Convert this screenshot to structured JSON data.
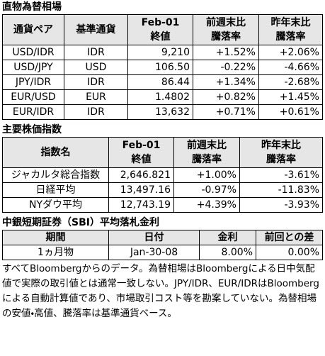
{
  "sections": [
    {
      "title": "直物為替相場",
      "header": [
        [
          "通貨ペア"
        ],
        [
          "基準通貨"
        ],
        [
          "Feb-01",
          "終値"
        ],
        [
          "前週末比",
          "騰落率"
        ],
        [
          "昨年末比",
          "騰落率"
        ]
      ],
      "rows": [
        [
          "USD/IDR",
          "IDR",
          "9,210",
          "+1.52%",
          "+2.06%"
        ],
        [
          "USD/JPY",
          "USD",
          "106.50",
          "-0.22%",
          "-4.66%"
        ],
        [
          "JPY/IDR",
          "IDR",
          "86.44",
          "+1.34%",
          "-2.68%"
        ],
        [
          "EUR/USD",
          "EUR",
          "1.4802",
          "+0.82%",
          "+1.45%"
        ],
        [
          "EUR/IDR",
          "IDR",
          "13,632",
          "+0.71%",
          "+0.61%"
        ]
      ]
    },
    {
      "title": "主要株価指数",
      "header": [
        [
          "指数名"
        ],
        [
          "Feb-01",
          "終値"
        ],
        [
          "前週末比",
          "騰落率"
        ],
        [
          "昨年末比",
          "騰落率"
        ]
      ],
      "rows": [
        [
          "ジャカルタ総合指数",
          "2,646.821",
          "+1.00%",
          "-3.61%"
        ],
        [
          "日経平均",
          "13,497.16",
          "-0.97%",
          "-11.83%"
        ],
        [
          "NYダウ平均",
          "12,743.19",
          "+4.39%",
          "-3.93%"
        ]
      ]
    },
    {
      "title": "中銀短期証券（SBI）平均落札金利",
      "header": [
        [
          "期間"
        ],
        [
          "日付"
        ],
        [
          "金利"
        ],
        [
          "前回との差"
        ]
      ],
      "rows": [
        [
          "1ヵ月物",
          "Jan-30-08",
          "8.00%",
          "0.00%"
        ]
      ]
    }
  ],
  "note": "すべてBloombergからのデータ。為替相場はBloombergによる日中気配値で実際の取引値とは通常一致しない。JPY/IDR、EUR/IDRはBloombergによる自動計算値であり、市場取引コスト等を勘案していない。為替相場の安値・高値、騰落率は基準通貨ベース。"
}
